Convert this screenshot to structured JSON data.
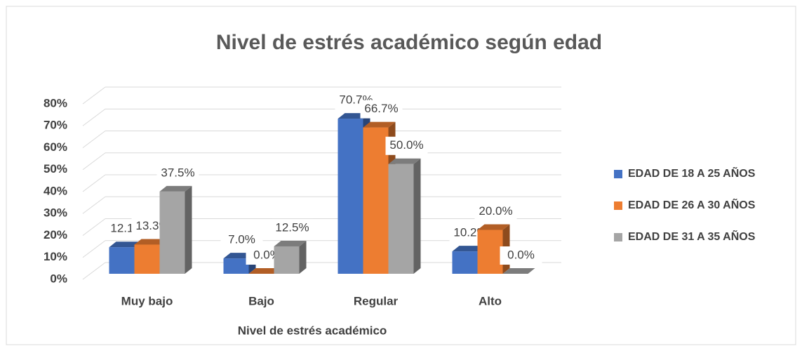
{
  "chart_data": {
    "type": "bar3d",
    "title": "Nivel de estrés académico según edad",
    "x_label": "Nivel de estrés académico",
    "categories": [
      "Muy bajo",
      "Bajo",
      "Regular",
      "Alto"
    ],
    "series": [
      {
        "name": "EDAD DE 18 A 25 AÑOS",
        "color": "#4472c4",
        "values": [
          12.1,
          7.0,
          70.7,
          10.2
        ],
        "value_labels": [
          "12.1%",
          "7.0%",
          "70.7%",
          "10.2%"
        ]
      },
      {
        "name": "EDAD DE 26 A 30 AÑOS",
        "color": "#ed7d31",
        "values": [
          13.3,
          0.0,
          66.7,
          20.0
        ],
        "value_labels": [
          "13.3%",
          "0.0%",
          "66.7%",
          "20.0%"
        ]
      },
      {
        "name": "EDAD DE 31 A 35 AÑOS",
        "color": "#a5a5a5",
        "values": [
          37.5,
          12.5,
          50.0,
          0.0
        ],
        "value_labels": [
          "37.5%",
          "12.5%",
          "50.0%",
          "0.0%"
        ]
      }
    ],
    "ylim": [
      0,
      80
    ],
    "yticks": [
      {
        "value": 0,
        "label": "0%"
      },
      {
        "value": 10,
        "label": "10%"
      },
      {
        "value": 20,
        "label": "20%"
      },
      {
        "value": 30,
        "label": "30%"
      },
      {
        "value": 40,
        "label": "40%"
      },
      {
        "value": 50,
        "label": "50%"
      },
      {
        "value": 60,
        "label": "60%"
      },
      {
        "value": 70,
        "label": "70%"
      },
      {
        "value": 80,
        "label": "80%"
      }
    ],
    "grid": true,
    "legend": "right"
  }
}
